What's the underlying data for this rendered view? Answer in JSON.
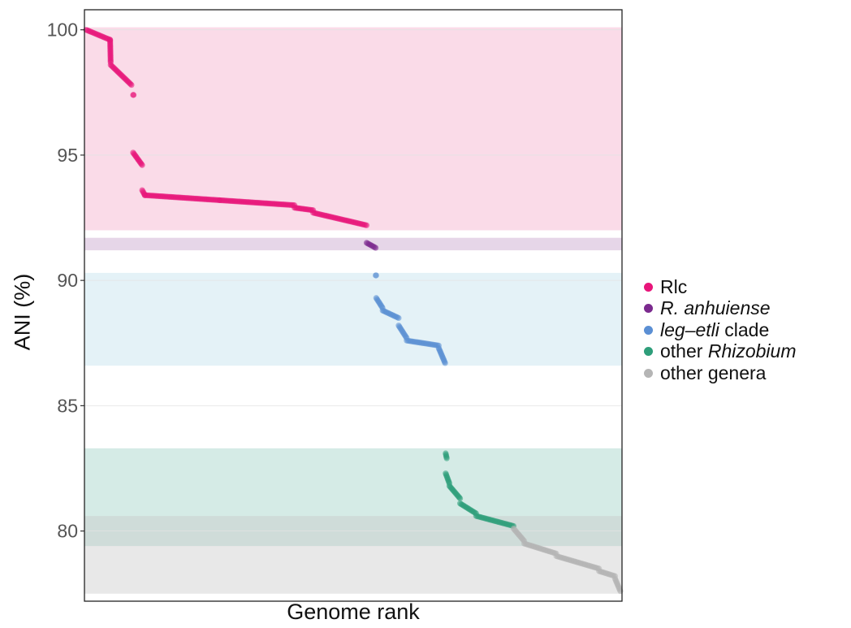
{
  "chart_data": {
    "type": "scatter",
    "xlabel": "Genome rank",
    "ylabel": "ANI (%)",
    "ylim": [
      77.2,
      100.8
    ],
    "xlim": [
      0,
      1000
    ],
    "yticks": [
      "80",
      "85",
      "90",
      "95",
      "100"
    ],
    "grid": false,
    "legend_position": "right",
    "bands": [
      {
        "group": "Rlc",
        "ymin": 92.0,
        "ymax": 100.1,
        "color": "#fadbe8"
      },
      {
        "group": "R. anhuiense",
        "ymin": 91.2,
        "ymax": 91.7,
        "color": "#e6d6e8"
      },
      {
        "group": "leg-etli clade",
        "ymin": 86.6,
        "ymax": 90.3,
        "color": "#e4f2f7"
      },
      {
        "group": "other Rhizobium",
        "ymin": 79.4,
        "ymax": 83.3,
        "color": "#d5ebe6"
      },
      {
        "group": "other genera",
        "ymin": 77.5,
        "ymax": 80.6,
        "color": "#c9c9c9",
        "opacity": 0.42
      }
    ],
    "series": [
      {
        "name": "Rlc",
        "legend_prefix": "",
        "legend_italic": "",
        "legend_suffix": "Rlc",
        "color": "#e8157a",
        "segments": [
          {
            "x": [
              0,
              45
            ],
            "y": [
              100.0,
              99.6
            ]
          },
          {
            "x": [
              45,
              46
            ],
            "y": [
              99.6,
              98.7
            ]
          },
          {
            "x": [
              46,
              85
            ],
            "y": [
              98.6,
              97.8
            ]
          },
          {
            "x": [
              88,
              89
            ],
            "y": [
              97.4,
              97.4
            ]
          },
          {
            "x": [
              88,
              105
            ],
            "y": [
              95.1,
              94.6
            ]
          },
          {
            "x": [
              105,
              110
            ],
            "y": [
              93.6,
              93.4
            ]
          },
          {
            "x": [
              110,
              250
            ],
            "y": [
              93.4,
              93.2
            ]
          },
          {
            "x": [
              250,
              390
            ],
            "y": [
              93.2,
              93.0
            ]
          },
          {
            "x": [
              390,
              425
            ],
            "y": [
              92.9,
              92.8
            ]
          },
          {
            "x": [
              425,
              525
            ],
            "y": [
              92.7,
              92.2
            ]
          }
        ]
      },
      {
        "name": "R. anhuiense",
        "legend_prefix": "",
        "legend_italic": "R. anhuiense",
        "legend_suffix": "",
        "color": "#7b2a8e",
        "segments": [
          {
            "x": [
              525,
              542
            ],
            "y": [
              91.5,
              91.3
            ]
          }
        ]
      },
      {
        "name": "leg-etli clade",
        "legend_prefix": "",
        "legend_italic": "leg–etli",
        "legend_suffix": " clade",
        "color": "#5b8fd4",
        "segments": [
          {
            "x": [
              542,
              543
            ],
            "y": [
              90.2,
              90.2
            ]
          },
          {
            "x": [
              543,
              555
            ],
            "y": [
              89.3,
              88.9
            ]
          },
          {
            "x": [
              555,
              585
            ],
            "y": [
              88.8,
              88.5
            ]
          },
          {
            "x": [
              585,
              600
            ],
            "y": [
              88.2,
              87.7
            ]
          },
          {
            "x": [
              600,
              660
            ],
            "y": [
              87.6,
              87.4
            ]
          },
          {
            "x": [
              660,
              672
            ],
            "y": [
              87.3,
              86.7
            ]
          }
        ]
      },
      {
        "name": "other Rhizobium",
        "legend_prefix": "other ",
        "legend_italic": "Rhizobium",
        "legend_suffix": "",
        "color": "#2e9e7a",
        "segments": [
          {
            "x": [
              673,
              675
            ],
            "y": [
              83.1,
              82.9
            ]
          },
          {
            "x": [
              673,
              680
            ],
            "y": [
              82.3,
              81.9
            ]
          },
          {
            "x": [
              680,
              700
            ],
            "y": [
              81.8,
              81.3
            ]
          },
          {
            "x": [
              700,
              730
            ],
            "y": [
              81.1,
              80.7
            ]
          },
          {
            "x": [
              730,
              800
            ],
            "y": [
              80.6,
              80.2
            ]
          }
        ]
      },
      {
        "name": "other genera",
        "legend_prefix": "",
        "legend_italic": "",
        "legend_suffix": "other genera",
        "color": "#b5b5b5",
        "segments": [
          {
            "x": [
              800,
              820
            ],
            "y": [
              80.1,
              79.6
            ]
          },
          {
            "x": [
              820,
              880
            ],
            "y": [
              79.5,
              79.1
            ]
          },
          {
            "x": [
              880,
              960
            ],
            "y": [
              79.0,
              78.5
            ]
          },
          {
            "x": [
              960,
              990
            ],
            "y": [
              78.4,
              78.2
            ]
          },
          {
            "x": [
              990,
              1000
            ],
            "y": [
              78.1,
              77.6
            ]
          }
        ]
      }
    ]
  }
}
